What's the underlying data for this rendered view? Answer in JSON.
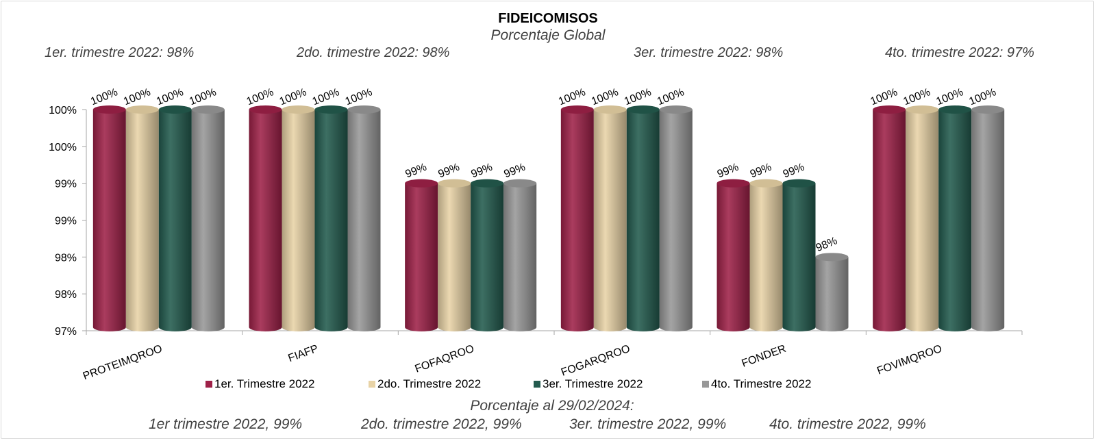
{
  "chart_data": {
    "type": "bar",
    "title": "FIDEICOMISOS",
    "subtitle": "Porcentaje Global",
    "quarter_notes": [
      "1er. trimestre 2022: 98%",
      "2do. trimestre 2022: 98%",
      "3er. trimestre 2022: 98%",
      "4to. trimestre 2022: 97%"
    ],
    "categories": [
      "PROTEIMQROO",
      "FIAFP",
      "FOFAQROO",
      "FOGARQROO",
      "FONDER",
      "FOVIMQROO"
    ],
    "series": [
      {
        "name": "1er. Trimestre 2022",
        "color": "#9E2148",
        "values": [
          100,
          100,
          99,
          100,
          99,
          100
        ],
        "labels": [
          "100%",
          "100%",
          "99%",
          "100%",
          "99%",
          "100%"
        ]
      },
      {
        "name": "2do. Trimestre 2022",
        "color": "#E8D3A6",
        "values": [
          100,
          100,
          99,
          100,
          99,
          100
        ],
        "labels": [
          "100%",
          "100%",
          "99%",
          "100%",
          "99%",
          "100%"
        ]
      },
      {
        "name": "3er. Trimestre 2022",
        "color": "#235B4E",
        "values": [
          100,
          100,
          99,
          100,
          99,
          100
        ],
        "labels": [
          "100%",
          "100%",
          "99%",
          "100%",
          "99%",
          "100%"
        ]
      },
      {
        "name": "4to. Trimestre 2022",
        "color": "#989898",
        "values": [
          100,
          100,
          99,
          100,
          98,
          100
        ],
        "labels": [
          "100%",
          "100%",
          "99%",
          "100%",
          "98%",
          "100%"
        ]
      }
    ],
    "y_ticks": [
      "100%",
      "100%",
      "99%",
      "99%",
      "98%",
      "98%",
      "97%"
    ],
    "ylim": [
      97,
      100
    ],
    "legend_position": "bottom",
    "footnote_title": "Porcentaje al 29/02/2024:",
    "footnote_items": [
      "1er trimestre  2022,  99%",
      "2do. trimestre 2022, 99%",
      "3er. trimestre 2022, 99%",
      "4to. trimestre 2022, 99%"
    ]
  }
}
